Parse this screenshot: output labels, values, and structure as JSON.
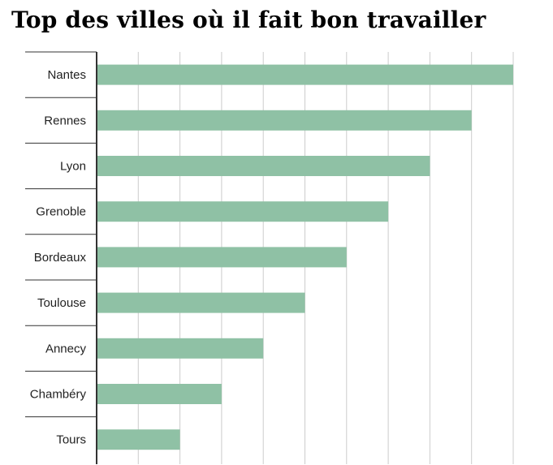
{
  "chart_data": {
    "type": "bar",
    "orientation": "horizontal",
    "title": "Top des villes où il fait bon travailler",
    "categories": [
      "Nantes",
      "Rennes",
      "Lyon",
      "Grenoble",
      "Bordeaux",
      "Toulouse",
      "Annecy",
      "Chambéry",
      "Tours"
    ],
    "values": [
      10,
      9,
      8,
      7,
      6,
      5,
      4,
      3,
      2
    ],
    "xlim": [
      0,
      10
    ],
    "grid": true,
    "bar_color": "#8fc1a5",
    "grid_color": "#cccccc",
    "axis_color": "#333333"
  }
}
